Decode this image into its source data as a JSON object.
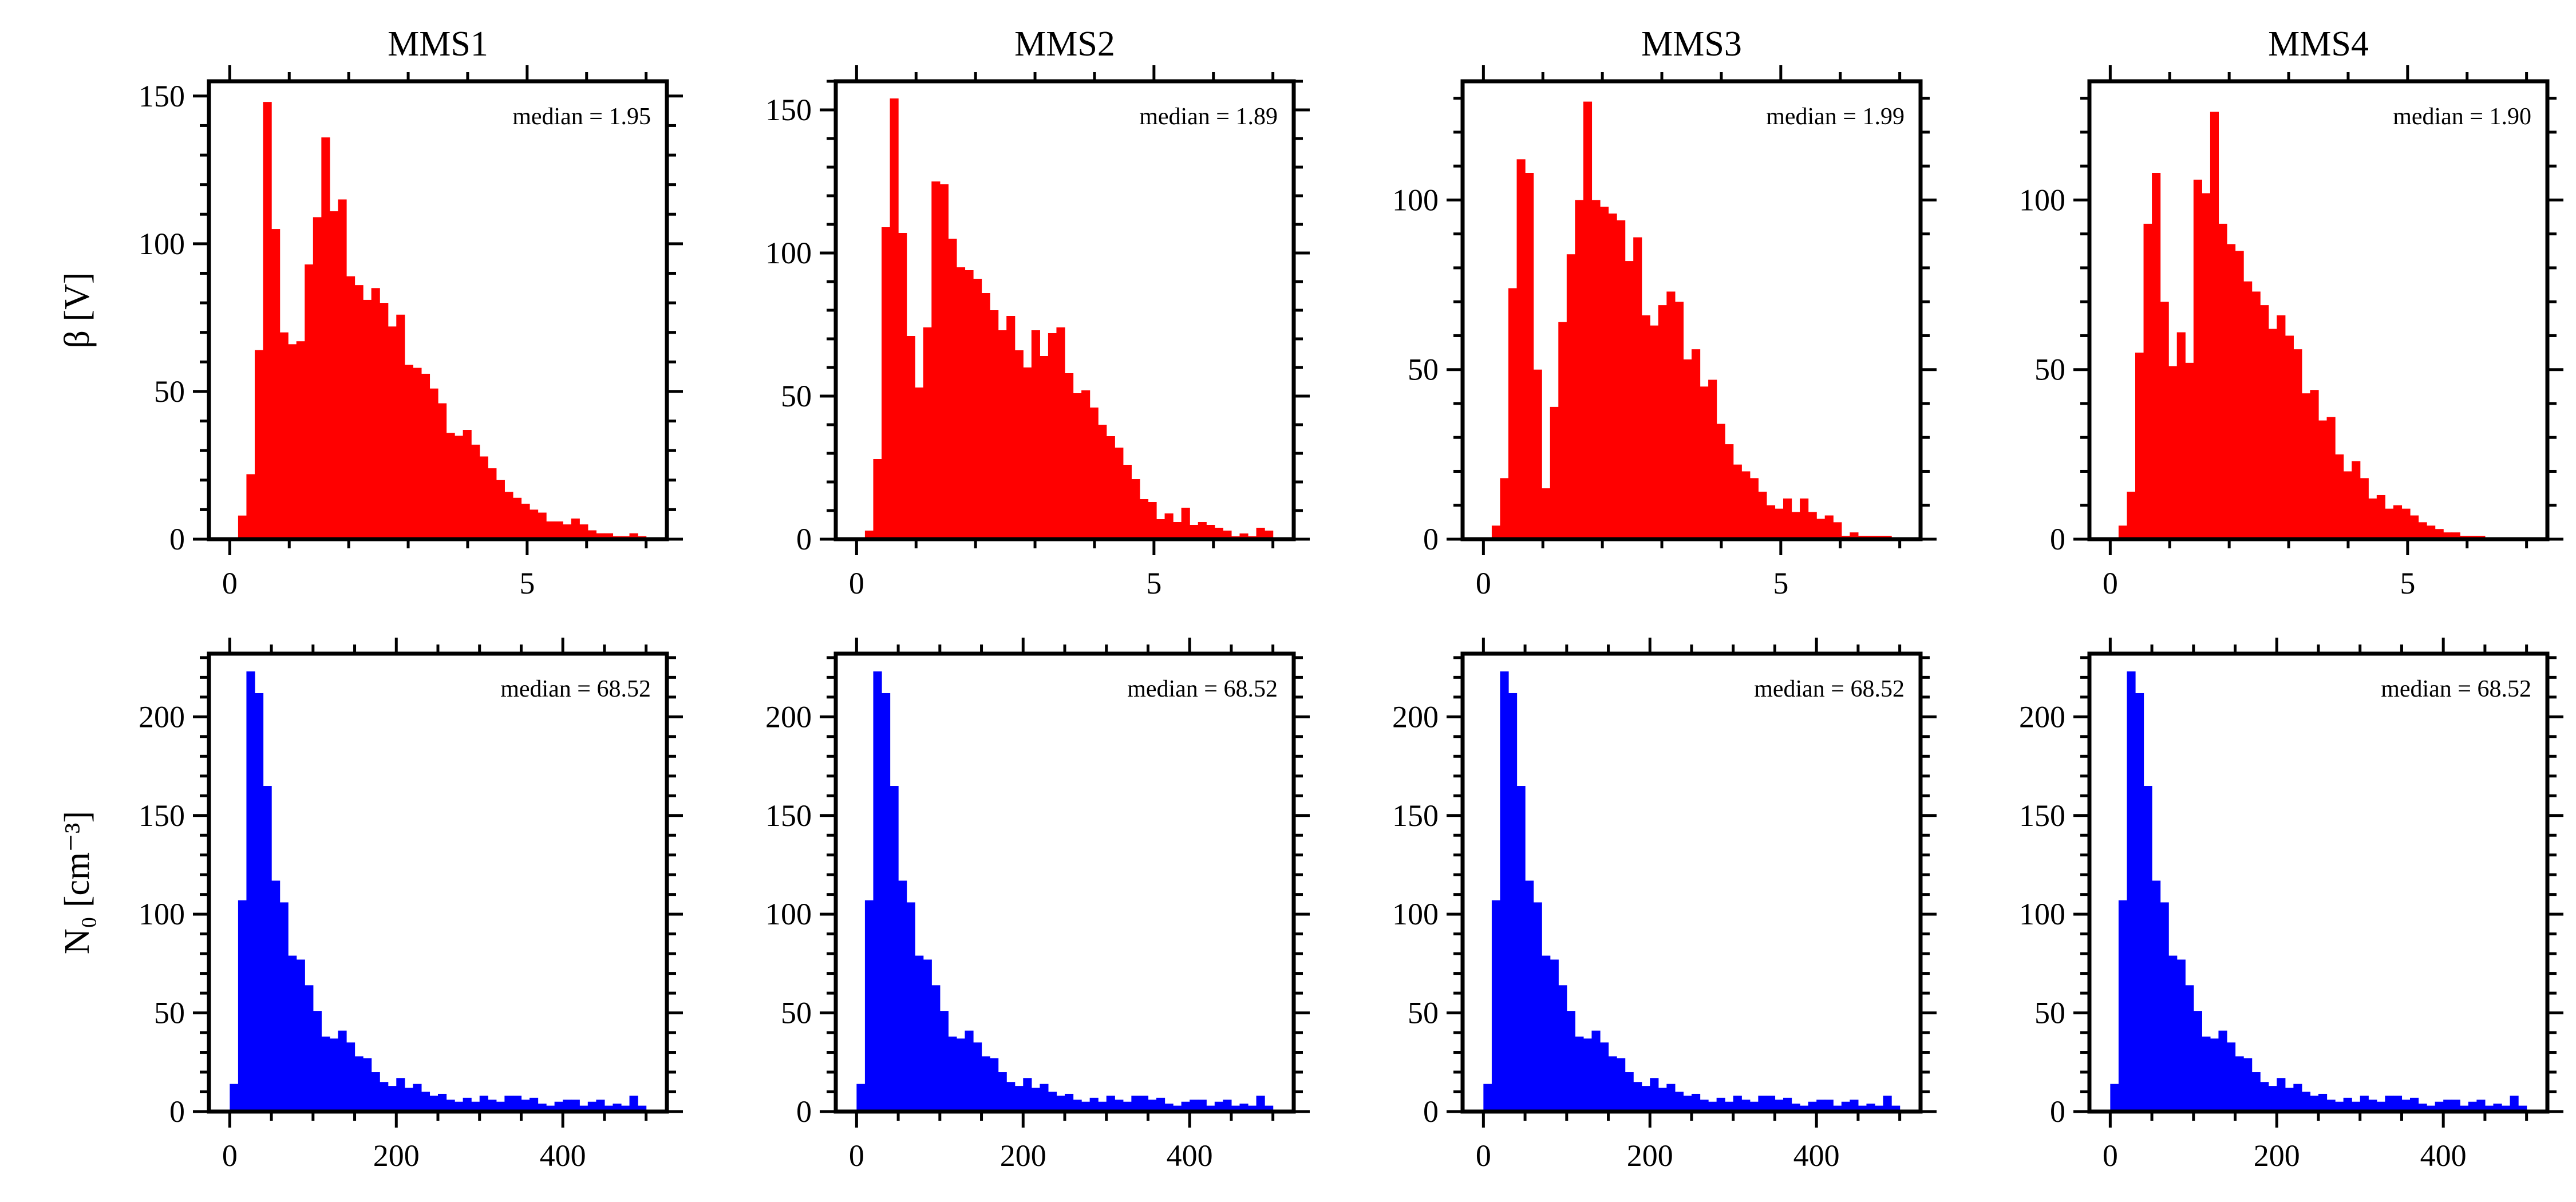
{
  "chart_data": [
    {
      "type": "bar",
      "title": "MMS1",
      "ylabel": "β [V]",
      "annotation": "median = 1.95",
      "color": "#ff0000",
      "xlim": [
        -0.35,
        7.35
      ],
      "ylim": [
        0,
        155
      ],
      "xticks": [
        0,
        5
      ],
      "yticks": [
        0,
        50,
        100,
        150
      ],
      "bin_start": 0,
      "bin_width": 0.14,
      "values": [
        0,
        8,
        22,
        64,
        148,
        105,
        70,
        66,
        67,
        93,
        109,
        136,
        111,
        115,
        89,
        86,
        81,
        85,
        80,
        72,
        76,
        59,
        58,
        56,
        51,
        46,
        36,
        35,
        37,
        32,
        28,
        24,
        20,
        16,
        14,
        12,
        10,
        9,
        6,
        6,
        5,
        7,
        5,
        3,
        2,
        2,
        1,
        1,
        2,
        1,
        0
      ]
    },
    {
      "type": "bar",
      "title": "MMS2",
      "ylabel": "",
      "annotation": "median = 1.89",
      "color": "#ff0000",
      "xlim": [
        -0.35,
        7.35
      ],
      "ylim": [
        0,
        160
      ],
      "xticks": [
        0,
        5
      ],
      "yticks": [
        0,
        50,
        100,
        150
      ],
      "bin_start": 0,
      "bin_width": 0.14,
      "values": [
        0,
        3,
        28,
        109,
        154,
        107,
        71,
        53,
        74,
        125,
        124,
        105,
        95,
        94,
        91,
        86,
        80,
        73,
        78,
        66,
        60,
        73,
        64,
        72,
        74,
        58,
        51,
        52,
        46,
        40,
        36,
        32,
        26,
        21,
        14,
        13,
        7,
        9,
        6,
        11,
        5,
        6,
        5,
        4,
        3,
        1,
        2,
        1,
        4,
        3,
        0
      ]
    },
    {
      "type": "bar",
      "title": "MMS3",
      "ylabel": "",
      "annotation": "median = 1.99",
      "color": "#ff0000",
      "xlim": [
        -0.35,
        7.35
      ],
      "ylim": [
        0,
        135
      ],
      "xticks": [
        0,
        5
      ],
      "yticks": [
        0,
        50,
        100
      ],
      "bin_start": 0,
      "bin_width": 0.14,
      "values": [
        0,
        4,
        18,
        74,
        112,
        108,
        50,
        15,
        39,
        64,
        84,
        100,
        129,
        100,
        98,
        96,
        94,
        82,
        89,
        66,
        63,
        69,
        73,
        70,
        53,
        56,
        45,
        47,
        34,
        28,
        22,
        20,
        18,
        14,
        10,
        9,
        12,
        8,
        12,
        8,
        6,
        7,
        5,
        1,
        2,
        1,
        1,
        1,
        1,
        0,
        0
      ]
    },
    {
      "type": "bar",
      "title": "MMS4",
      "ylabel": "",
      "annotation": "median = 1.90",
      "color": "#ff0000",
      "xlim": [
        -0.35,
        7.35
      ],
      "ylim": [
        0,
        135
      ],
      "xticks": [
        0,
        5
      ],
      "yticks": [
        0,
        50,
        100
      ],
      "bin_start": 0,
      "bin_width": 0.14,
      "values": [
        0,
        4,
        14,
        55,
        93,
        108,
        70,
        51,
        61,
        52,
        106,
        102,
        126,
        93,
        87,
        85,
        76,
        73,
        69,
        62,
        66,
        60,
        56,
        43,
        44,
        35,
        36,
        25,
        20,
        23,
        18,
        12,
        13,
        9,
        10,
        9,
        7,
        5,
        4,
        3,
        2,
        2,
        1,
        1,
        1,
        0,
        0,
        0,
        0,
        0,
        0
      ]
    },
    {
      "type": "bar",
      "title": "",
      "ylabel": "N₀ [cm⁻³]",
      "annotation": "median = 68.52",
      "color": "#0000ff",
      "xlim": [
        -25,
        525
      ],
      "ylim": [
        0,
        232
      ],
      "xticks": [
        0,
        200,
        400
      ],
      "yticks": [
        0,
        50,
        100,
        150,
        200
      ],
      "bin_start": 0,
      "bin_width": 10,
      "values": [
        14,
        107,
        223,
        212,
        165,
        117,
        106,
        79,
        77,
        64,
        51,
        38,
        37,
        41,
        35,
        28,
        27,
        20,
        15,
        13,
        17,
        12,
        14,
        10,
        8,
        9,
        6,
        5,
        7,
        5,
        8,
        6,
        5,
        8,
        8,
        6,
        7,
        4,
        3,
        5,
        6,
        6,
        3,
        5,
        6,
        3,
        4,
        3,
        8,
        3
      ]
    },
    {
      "type": "bar",
      "title": "",
      "ylabel": "",
      "annotation": "median = 68.52",
      "color": "#0000ff",
      "xlim": [
        -25,
        525
      ],
      "ylim": [
        0,
        232
      ],
      "xticks": [
        0,
        200,
        400
      ],
      "yticks": [
        0,
        50,
        100,
        150,
        200
      ],
      "bin_start": 0,
      "bin_width": 10,
      "values": [
        14,
        107,
        223,
        212,
        165,
        117,
        106,
        79,
        77,
        64,
        51,
        38,
        37,
        41,
        35,
        28,
        27,
        20,
        15,
        13,
        17,
        12,
        14,
        10,
        8,
        9,
        6,
        5,
        7,
        5,
        8,
        6,
        5,
        8,
        8,
        6,
        7,
        4,
        3,
        5,
        6,
        6,
        3,
        5,
        6,
        3,
        4,
        3,
        8,
        3
      ]
    },
    {
      "type": "bar",
      "title": "",
      "ylabel": "",
      "annotation": "median = 68.52",
      "color": "#0000ff",
      "xlim": [
        -25,
        525
      ],
      "ylim": [
        0,
        232
      ],
      "xticks": [
        0,
        200,
        400
      ],
      "yticks": [
        0,
        50,
        100,
        150,
        200
      ],
      "bin_start": 0,
      "bin_width": 10,
      "values": [
        14,
        107,
        223,
        212,
        165,
        117,
        106,
        79,
        77,
        64,
        51,
        38,
        37,
        41,
        35,
        28,
        27,
        20,
        15,
        13,
        17,
        12,
        14,
        10,
        8,
        9,
        6,
        5,
        7,
        5,
        8,
        6,
        5,
        8,
        8,
        6,
        7,
        4,
        3,
        5,
        6,
        6,
        3,
        5,
        6,
        3,
        4,
        3,
        8,
        3
      ]
    },
    {
      "type": "bar",
      "title": "",
      "ylabel": "",
      "annotation": "median = 68.52",
      "color": "#0000ff",
      "xlim": [
        -25,
        525
      ],
      "ylim": [
        0,
        232
      ],
      "xticks": [
        0,
        200,
        400
      ],
      "yticks": [
        0,
        50,
        100,
        150,
        200
      ],
      "bin_start": 0,
      "bin_width": 10,
      "values": [
        14,
        107,
        223,
        212,
        165,
        117,
        106,
        79,
        77,
        64,
        51,
        38,
        37,
        41,
        35,
        28,
        27,
        20,
        15,
        13,
        17,
        12,
        14,
        10,
        8,
        9,
        6,
        5,
        7,
        5,
        8,
        6,
        5,
        8,
        8,
        6,
        7,
        4,
        3,
        5,
        6,
        6,
        3,
        5,
        6,
        3,
        4,
        3,
        8,
        3
      ]
    }
  ]
}
